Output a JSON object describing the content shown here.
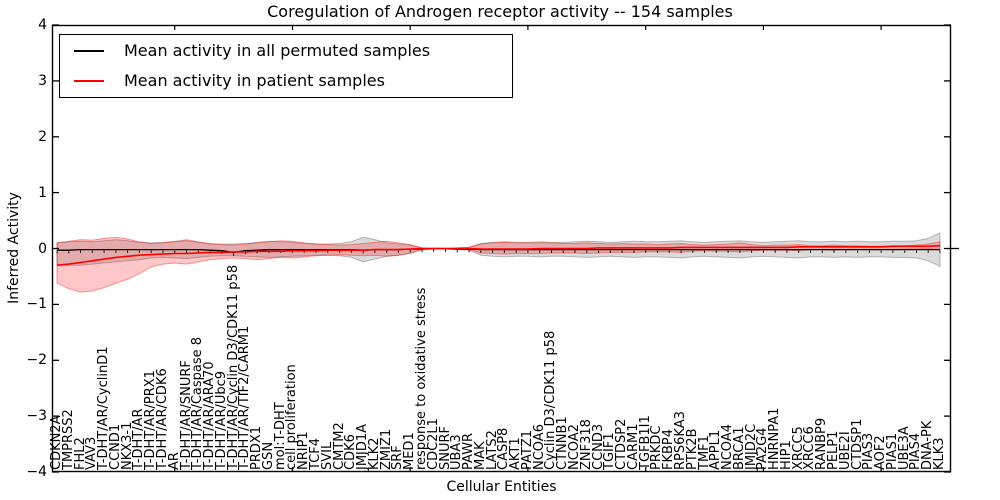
{
  "title": "Coregulation of Androgen receptor activity -- 154 samples",
  "xlabel": "Cellular Entities",
  "ylabel": "Inferred Activity",
  "legend": [
    {
      "label": "Mean activity in all permuted samples",
      "color": "#000000"
    },
    {
      "label": "Mean activity in patient samples",
      "color": "#ff0000"
    }
  ],
  "yticks": [
    {
      "v": 4,
      "label": "4"
    },
    {
      "v": 3,
      "label": "3"
    },
    {
      "v": 2,
      "label": "2"
    },
    {
      "v": 1,
      "label": "1"
    },
    {
      "v": 0,
      "label": "0"
    },
    {
      "v": -1,
      "label": "−1"
    },
    {
      "v": -2,
      "label": "−2"
    },
    {
      "v": -3,
      "label": "−3"
    },
    {
      "v": -4,
      "label": "−4"
    }
  ],
  "chart_data": {
    "type": "line",
    "title": "Coregulation of Androgen receptor activity -- 154 samples",
    "xlabel": "Cellular Entities",
    "ylabel": "Inferred Activity",
    "ylim": [
      -4,
      4
    ],
    "grid": false,
    "legend_position": "upper left",
    "n_samples": 154,
    "categories": [
      "CDKN2A",
      "TMPRSS2",
      "FHL2",
      "VAV3",
      "T-DHT/AR/CyclinD1",
      "CCND1",
      "NKX3-1",
      "T-DHT/AR",
      "T-DHT/AR/PRX1",
      "T-DHT/AR/CDK6",
      "AR",
      "T-DHT/AR/SNURF",
      "T-DHT/AR/Caspase 8",
      "T-DHT/AR/ARA70",
      "T-DHT/AR/Ubc9",
      "T-DHT/AR/Cyclin D3/CDK11 p58",
      "T-DHT/AR/TIF2/CARM1",
      "PRDX1",
      "GSN",
      "mol:T-DHT",
      "cell proliferation",
      "NRIP1",
      "TCF4",
      "SVIL",
      "CMTM2",
      "CDK6",
      "JMJD1A",
      "KLK2",
      "ZMIZ1",
      "SRF",
      "MED1",
      "response to oxidative stress",
      "CDC2L1",
      "SNURF",
      "UBA3",
      "PAWR",
      "MAK",
      "LATS2",
      "CASP8",
      "AKT1",
      "PATZ1",
      "NCOA6",
      "Cyclin D3/CDK11 p58",
      "CTNNB1",
      "NCOA2",
      "ZNF318",
      "CCND3",
      "TGIF1",
      "CTDSP2",
      "CARM1",
      "TGFB1I1",
      "PRKDC",
      "FKBP4",
      "RPS6KA3",
      "PTK2B",
      "TMF1",
      "APPL1",
      "NCOA4",
      "BRCA1",
      "JMJD2C",
      "PA2G4",
      "HNRNPA1",
      "HIP1",
      "XRCC5",
      "XRCC6",
      "RANBP9",
      "PELP1",
      "UBE2I",
      "CTDSP1",
      "PIAS3",
      "AOF2",
      "PIAS1",
      "UBE3A",
      "PIAS4",
      "DNA-PK",
      "KLK3"
    ],
    "series": [
      {
        "name": "Mean activity in all permuted samples",
        "color": "#000000",
        "band_fill": "rgba(0,0,0,0.14)",
        "band_edge": "rgba(0,0,0,0.25)",
        "values": [
          -0.03,
          -0.03,
          -0.02,
          -0.02,
          -0.02,
          -0.02,
          -0.02,
          -0.02,
          -0.02,
          -0.02,
          -0.02,
          -0.02,
          -0.02,
          -0.03,
          -0.04,
          -0.07,
          -0.04,
          -0.03,
          -0.02,
          -0.02,
          -0.02,
          -0.02,
          -0.02,
          -0.02,
          -0.02,
          -0.02,
          -0.03,
          -0.02,
          -0.02,
          -0.02,
          -0.01,
          -0.01,
          0.0,
          0.0,
          -0.01,
          -0.01,
          -0.02,
          -0.02,
          -0.02,
          -0.02,
          -0.02,
          -0.02,
          -0.02,
          -0.02,
          -0.02,
          -0.02,
          -0.02,
          -0.02,
          -0.02,
          -0.02,
          -0.02,
          -0.02,
          -0.02,
          -0.02,
          -0.02,
          -0.02,
          -0.02,
          -0.02,
          -0.02,
          -0.02,
          -0.02,
          -0.02,
          -0.02,
          -0.02,
          -0.02,
          -0.02,
          -0.02,
          -0.02,
          -0.02,
          -0.02,
          -0.02,
          -0.02,
          -0.02,
          -0.02,
          -0.02,
          -0.02
        ],
        "band_upper": [
          0.1,
          0.12,
          0.13,
          0.12,
          0.14,
          0.16,
          0.14,
          0.11,
          0.1,
          0.11,
          0.13,
          0.14,
          0.11,
          0.09,
          0.08,
          0.08,
          0.09,
          0.11,
          0.13,
          0.12,
          0.11,
          0.09,
          0.08,
          0.08,
          0.09,
          0.12,
          0.2,
          0.16,
          0.1,
          0.08,
          0.06,
          0.01,
          0.0,
          0.0,
          0.01,
          0.02,
          0.09,
          0.11,
          0.12,
          0.11,
          0.11,
          0.12,
          0.11,
          0.11,
          0.12,
          0.13,
          0.12,
          0.11,
          0.12,
          0.13,
          0.12,
          0.12,
          0.13,
          0.14,
          0.12,
          0.11,
          0.12,
          0.13,
          0.14,
          0.12,
          0.11,
          0.12,
          0.13,
          0.14,
          0.12,
          0.12,
          0.13,
          0.12,
          0.13,
          0.12,
          0.12,
          0.13,
          0.13,
          0.14,
          0.18,
          0.28
        ],
        "band_lower": [
          -0.28,
          -0.3,
          -0.3,
          -0.28,
          -0.26,
          -0.24,
          -0.22,
          -0.2,
          -0.17,
          -0.16,
          -0.17,
          -0.18,
          -0.16,
          -0.14,
          -0.13,
          -0.13,
          -0.14,
          -0.15,
          -0.16,
          -0.15,
          -0.14,
          -0.13,
          -0.12,
          -0.12,
          -0.13,
          -0.16,
          -0.24,
          -0.19,
          -0.14,
          -0.12,
          -0.09,
          -0.02,
          -0.01,
          -0.01,
          -0.02,
          -0.03,
          -0.12,
          -0.14,
          -0.15,
          -0.14,
          -0.14,
          -0.15,
          -0.14,
          -0.14,
          -0.15,
          -0.16,
          -0.15,
          -0.14,
          -0.15,
          -0.16,
          -0.15,
          -0.15,
          -0.16,
          -0.17,
          -0.15,
          -0.14,
          -0.15,
          -0.16,
          -0.17,
          -0.15,
          -0.14,
          -0.15,
          -0.16,
          -0.17,
          -0.15,
          -0.15,
          -0.16,
          -0.15,
          -0.16,
          -0.15,
          -0.15,
          -0.16,
          -0.16,
          -0.17,
          -0.22,
          -0.32
        ]
      },
      {
        "name": "Mean activity in patient samples",
        "color": "#ff0000",
        "band_fill": "rgba(255,0,0,0.22)",
        "band_edge": "rgba(255,0,0,0.38)",
        "values": [
          -0.3,
          -0.28,
          -0.25,
          -0.22,
          -0.19,
          -0.16,
          -0.14,
          -0.12,
          -0.11,
          -0.1,
          -0.09,
          -0.09,
          -0.08,
          -0.07,
          -0.07,
          -0.06,
          -0.06,
          -0.05,
          -0.05,
          -0.05,
          -0.04,
          -0.04,
          -0.04,
          -0.03,
          -0.03,
          -0.03,
          -0.03,
          -0.02,
          -0.02,
          -0.02,
          -0.01,
          0.0,
          0.0,
          0.0,
          0.0,
          0.0,
          -0.01,
          -0.01,
          -0.01,
          -0.01,
          -0.01,
          0.0,
          0.0,
          0.0,
          0.0,
          0.0,
          0.01,
          0.01,
          0.01,
          0.01,
          0.01,
          0.01,
          0.01,
          0.02,
          0.02,
          0.02,
          0.02,
          0.02,
          0.02,
          0.02,
          0.02,
          0.02,
          0.02,
          0.03,
          0.03,
          0.03,
          0.03,
          0.03,
          0.03,
          0.03,
          0.03,
          0.04,
          0.04,
          0.04,
          0.04,
          0.05
        ],
        "band_upper": [
          0.1,
          0.13,
          0.16,
          0.15,
          0.18,
          0.2,
          0.17,
          0.12,
          0.09,
          0.1,
          0.12,
          0.16,
          0.12,
          0.08,
          0.07,
          0.06,
          0.08,
          0.1,
          0.12,
          0.14,
          0.13,
          0.1,
          0.08,
          0.07,
          0.06,
          0.07,
          0.09,
          0.11,
          0.13,
          0.1,
          0.07,
          0.01,
          0.0,
          0.0,
          0.01,
          0.02,
          0.08,
          0.1,
          0.11,
          0.1,
          0.1,
          0.1,
          0.1,
          0.09,
          0.09,
          0.1,
          0.09,
          0.08,
          0.09,
          0.08,
          0.08,
          0.07,
          0.08,
          0.09,
          0.07,
          0.06,
          0.07,
          0.08,
          0.1,
          0.07,
          0.05,
          0.06,
          0.06,
          0.07,
          0.05,
          0.05,
          0.06,
          0.05,
          0.05,
          0.04,
          0.04,
          0.05,
          0.05,
          0.06,
          0.08,
          0.12
        ],
        "band_lower": [
          -0.62,
          -0.72,
          -0.78,
          -0.76,
          -0.7,
          -0.62,
          -0.55,
          -0.45,
          -0.33,
          -0.28,
          -0.26,
          -0.28,
          -0.24,
          -0.2,
          -0.18,
          -0.17,
          -0.18,
          -0.2,
          -0.18,
          -0.16,
          -0.17,
          -0.15,
          -0.13,
          -0.12,
          -0.11,
          -0.12,
          -0.13,
          -0.12,
          -0.14,
          -0.12,
          -0.08,
          -0.01,
          0.0,
          0.0,
          -0.01,
          -0.02,
          -0.08,
          -0.09,
          -0.1,
          -0.09,
          -0.09,
          -0.09,
          -0.08,
          -0.08,
          -0.08,
          -0.09,
          -0.08,
          -0.07,
          -0.07,
          -0.07,
          -0.06,
          -0.06,
          -0.06,
          -0.07,
          -0.05,
          -0.04,
          -0.05,
          -0.05,
          -0.06,
          -0.04,
          -0.03,
          -0.03,
          -0.03,
          -0.04,
          -0.02,
          -0.02,
          -0.03,
          -0.02,
          -0.02,
          -0.02,
          -0.02,
          -0.02,
          -0.01,
          -0.01,
          0.0,
          -0.02
        ]
      }
    ]
  }
}
